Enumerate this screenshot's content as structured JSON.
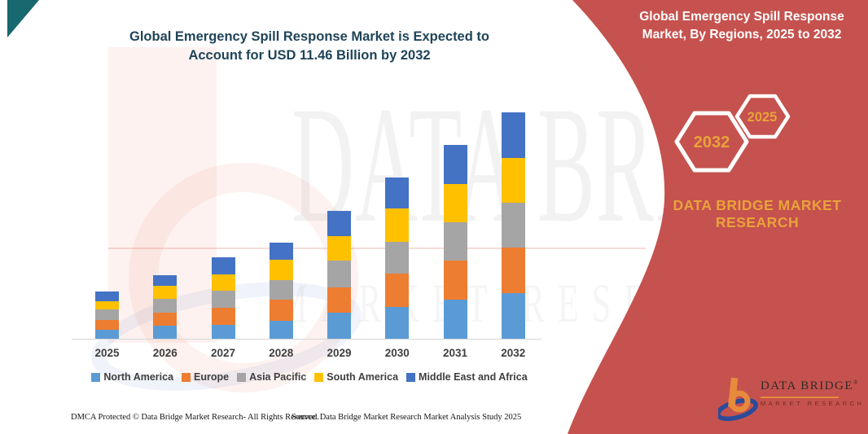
{
  "title": {
    "line1": "Global Emergency Spill Response Market is Expected to",
    "line2": "Account for USD 11.46 Billion by 2032"
  },
  "side_panel": {
    "title_line1": "Global Emergency Spill Response",
    "title_line2": "Market, By Regions, 2025 to 2032",
    "hexagon_large_label": "2032",
    "hexagon_small_label": "2025",
    "brand_line1": "DATA BRIDGE MARKET",
    "brand_line2": "RESEARCH",
    "band_color": "#C5524E",
    "accent_gold": "#E9A23B"
  },
  "watermark": {
    "line1": "DATA BRIDGE",
    "line2": "MARKET RESEARCH"
  },
  "chart_data": {
    "type": "bar",
    "stacked": true,
    "title": "Global Emergency Spill Response Market, By Regions, 2025 to 2032",
    "unit": "USD Billion",
    "categories": [
      "2025",
      "2026",
      "2027",
      "2028",
      "2029",
      "2030",
      "2031",
      "2032"
    ],
    "series": [
      {
        "name": "North America",
        "color": "#5B9BD5",
        "values": [
          0.47,
          0.65,
          0.69,
          0.92,
          1.31,
          1.59,
          1.99,
          2.32
        ]
      },
      {
        "name": "Europe",
        "color": "#ED7D31",
        "values": [
          0.49,
          0.66,
          0.86,
          1.07,
          1.3,
          1.72,
          1.95,
          2.3
        ]
      },
      {
        "name": "Asia Pacific",
        "color": "#A5A5A5",
        "values": [
          0.52,
          0.71,
          0.88,
          0.96,
          1.33,
          1.6,
          1.95,
          2.26
        ]
      },
      {
        "name": "South America",
        "color": "#FFC000",
        "values": [
          0.41,
          0.66,
          0.82,
          1.03,
          1.26,
          1.68,
          1.96,
          2.29
        ]
      },
      {
        "name": "Middle East and Africa",
        "color": "#4472C4",
        "values": [
          0.52,
          0.52,
          0.87,
          0.89,
          1.28,
          1.57,
          1.95,
          2.29
        ]
      }
    ],
    "totals": [
      2.41,
      3.2,
      4.12,
      4.87,
      6.48,
      8.16,
      9.8,
      11.46
    ],
    "xlabel": "",
    "ylabel": "",
    "ylim": [
      0,
      11.46
    ],
    "grid": false,
    "y_axis_visible": false,
    "legend_position": "bottom"
  },
  "footer": {
    "dmca": "DMCA Protected © Data Bridge Market Research- All Rights Reserved.",
    "source": "Source: Data Bridge Market Research Market Analysis Study 2025"
  },
  "logo": {
    "name_text": "DATA BRIDGE",
    "registered_mark": "®",
    "sub_text": "MARKET RESEARCH"
  }
}
